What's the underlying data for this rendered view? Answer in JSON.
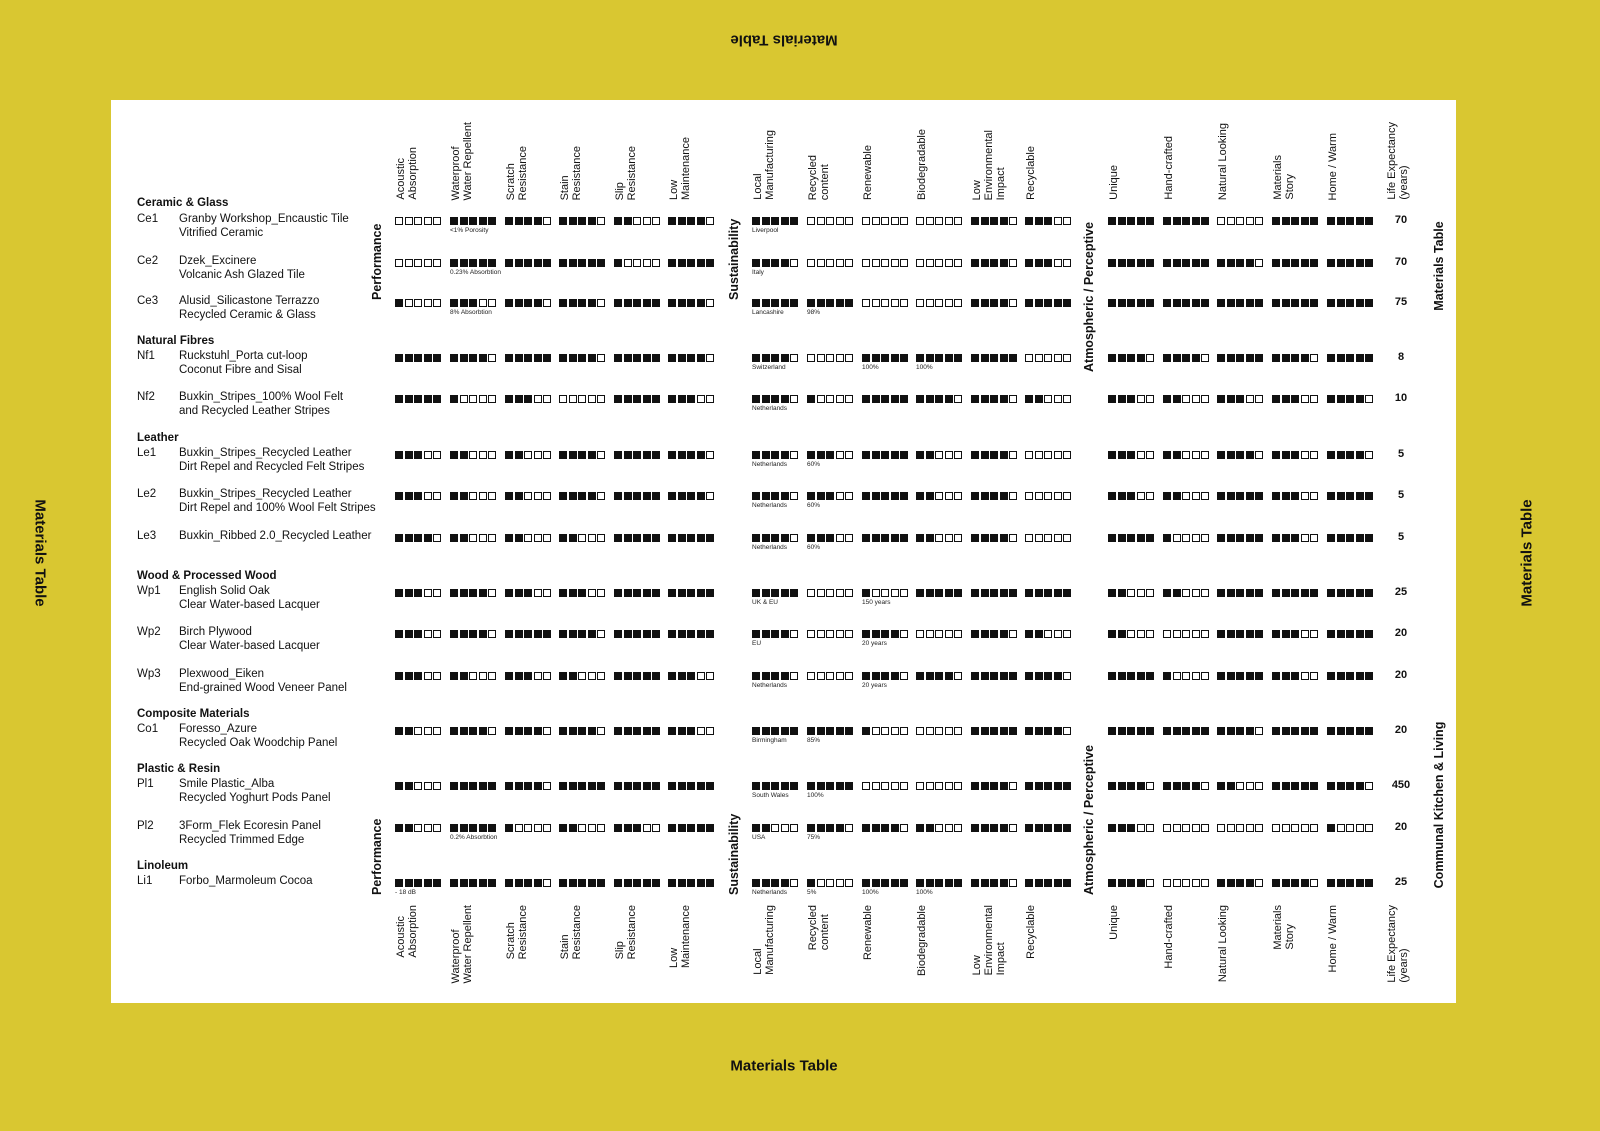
{
  "frame_title": "Materials Table",
  "side_labels": {
    "top_right": "Materials Table",
    "bottom_right": "Communal Kitchen & Living"
  },
  "groups": {
    "performance": "Performance",
    "sustainability": "Sustainability",
    "atmospheric": "Atmospheric / Perceptive"
  },
  "columns": [
    "Acoustic\nAbsorption",
    "Waterproof\nWater Repellent",
    "Scratch\nResistance",
    "Stain\nResistance",
    "Slip\nResistance",
    "Low\nMaintenance",
    "Local\nManufacturing",
    "Recycled\ncontent",
    "Renewable",
    "Biodegradable",
    "Low\nEnvironmental\nImpact",
    "Recyclable",
    "Unique",
    "Hand-crafted",
    "Natural Looking",
    "Materials\nStory",
    "Home /  Warm",
    "Life Expectancy\n(years)"
  ],
  "categories": [
    {
      "name": "Ceramic & Glass",
      "rows": [
        {
          "code": "Ce1",
          "name": "Granby Workshop_Encaustic Tile\nVitrified Ceramic",
          "ratings": [
            0,
            5,
            4,
            4,
            2,
            4,
            5,
            0,
            0,
            0,
            4,
            3,
            5,
            5,
            0,
            5,
            5
          ],
          "life": "70",
          "notes": {
            "1": "<1% Porosity",
            "6": "Liverpool"
          }
        },
        {
          "code": "Ce2",
          "name": "Dzek_Excinere\nVolcanic Ash Glazed Tile",
          "ratings": [
            0,
            5,
            5,
            5,
            1,
            5,
            4,
            0,
            0,
            0,
            4,
            3,
            5,
            5,
            4,
            5,
            5
          ],
          "life": "70",
          "notes": {
            "1": "0.23% Absorbtion",
            "6": "Italy"
          }
        },
        {
          "code": "Ce3",
          "name": "Alusid_Silicastone Terrazzo\nRecycled Ceramic & Glass",
          "ratings": [
            1,
            3,
            4,
            4,
            5,
            4,
            5,
            5,
            0,
            0,
            4,
            5,
            5,
            5,
            5,
            5,
            5
          ],
          "life": "75",
          "notes": {
            "1": "8% Absorbtion",
            "6": "Lancashire",
            "7": "98%"
          }
        }
      ]
    },
    {
      "name": "Natural Fibres",
      "rows": [
        {
          "code": "Nf1",
          "name": "Ruckstuhl_Porta cut-loop\nCoconut Fibre and Sisal",
          "ratings": [
            5,
            4,
            5,
            4,
            5,
            4,
            4,
            0,
            5,
            5,
            5,
            0,
            4,
            4,
            5,
            4,
            5
          ],
          "life": "8",
          "notes": {
            "6": "Switzerland",
            "8": "100%",
            "9": "100%"
          }
        },
        {
          "code": "Nf2",
          "name": "Buxkin_Stripes_100% Wool Felt\nand Recycled Leather Stripes",
          "ratings": [
            5,
            1,
            3,
            0,
            5,
            3,
            4,
            1,
            5,
            4,
            4,
            2,
            3,
            2,
            3,
            3,
            4
          ],
          "life": "10",
          "notes": {
            "6": "Netherlands"
          }
        }
      ]
    },
    {
      "name": "Leather",
      "rows": [
        {
          "code": "Le1",
          "name": "Buxkin_Stripes_Recycled Leather\nDirt Repel and Recycled Felt Stripes",
          "ratings": [
            3,
            2,
            2,
            4,
            5,
            4,
            4,
            3,
            5,
            2,
            4,
            0,
            3,
            2,
            4,
            3,
            4
          ],
          "life": "5",
          "notes": {
            "6": "Netherlands",
            "7": "60%"
          }
        },
        {
          "code": "Le2",
          "name": "Buxkin_Stripes_Recycled Leather\nDirt Repel and 100% Wool Felt Stripes",
          "ratings": [
            3,
            2,
            2,
            4,
            5,
            4,
            4,
            3,
            5,
            2,
            4,
            0,
            3,
            2,
            5,
            3,
            5
          ],
          "life": "5",
          "notes": {
            "6": "Netherlands",
            "7": "60%"
          }
        },
        {
          "code": "Le3",
          "name": "Buxkin_Ribbed 2.0_Recycled Leather",
          "ratings": [
            4,
            2,
            2,
            2,
            5,
            5,
            4,
            3,
            5,
            2,
            4,
            0,
            5,
            1,
            5,
            3,
            5
          ],
          "life": "5",
          "notes": {
            "6": "Netherlands",
            "7": "60%"
          }
        }
      ]
    },
    {
      "name": "Wood & Processed Wood",
      "rows": [
        {
          "code": "Wp1",
          "name": "English Solid Oak\nClear Water-based Lacquer",
          "ratings": [
            3,
            4,
            3,
            3,
            5,
            5,
            5,
            0,
            1,
            5,
            5,
            5,
            2,
            2,
            5,
            5,
            5
          ],
          "life": "25",
          "notes": {
            "6": "UK & EU",
            "8": "150 years"
          }
        },
        {
          "code": "Wp2",
          "name": "Birch Plywood\nClear Water-based Lacquer",
          "ratings": [
            3,
            4,
            5,
            4,
            5,
            5,
            4,
            0,
            4,
            0,
            4,
            2,
            2,
            0,
            5,
            3,
            5
          ],
          "life": "20",
          "notes": {
            "6": "EU",
            "8": "20 years"
          }
        },
        {
          "code": "Wp3",
          "name": "Plexwood_Eiken\nEnd-grained Wood Veneer Panel",
          "ratings": [
            3,
            2,
            3,
            2,
            5,
            3,
            4,
            0,
            4,
            4,
            5,
            4,
            5,
            1,
            5,
            3,
            5
          ],
          "life": "20",
          "notes": {
            "6": "Netherlands",
            "8": "20 years"
          }
        }
      ]
    },
    {
      "name": "Composite Materials",
      "rows": [
        {
          "code": "Co1",
          "name": "Foresso_Azure\nRecycled Oak Woodchip Panel",
          "ratings": [
            2,
            4,
            4,
            4,
            5,
            3,
            5,
            5,
            1,
            0,
            5,
            4,
            5,
            5,
            4,
            5,
            5
          ],
          "life": "20",
          "notes": {
            "6": "Birmingham",
            "7": "85%"
          }
        }
      ]
    },
    {
      "name": "Plastic & Resin",
      "rows": [
        {
          "code": "Pl1",
          "name": "Smile Plastic_Alba\nRecycled Yoghurt Pods Panel",
          "ratings": [
            2,
            5,
            4,
            5,
            5,
            5,
            5,
            5,
            0,
            0,
            4,
            5,
            4,
            4,
            2,
            5,
            4
          ],
          "life": "450",
          "notes": {
            "6": "South Wales",
            "7": "100%"
          }
        },
        {
          "code": "Pl2",
          "name": "3Form_Flek Ecoresin Panel\nRecycled Trimmed Edge",
          "ratings": [
            2,
            5,
            1,
            2,
            3,
            5,
            2,
            4,
            4,
            2,
            4,
            5,
            3,
            0,
            0,
            0,
            1
          ],
          "life": "20",
          "notes": {
            "1": "0.2% Absorbtion",
            "6": "USA",
            "7": "75%"
          }
        }
      ]
    },
    {
      "name": "Linoleum",
      "rows": [
        {
          "code": "Li1",
          "name": "Forbo_Marmoleum Cocoa",
          "ratings": [
            5,
            5,
            4,
            5,
            5,
            5,
            4,
            1,
            5,
            5,
            4,
            5,
            4,
            0,
            4,
            4,
            5
          ],
          "life": "25",
          "notes": {
            "0": "- 18 dB",
            "6": "Netherlands",
            "7": "5%",
            "8": "100%",
            "9": "100%"
          }
        }
      ]
    }
  ]
}
